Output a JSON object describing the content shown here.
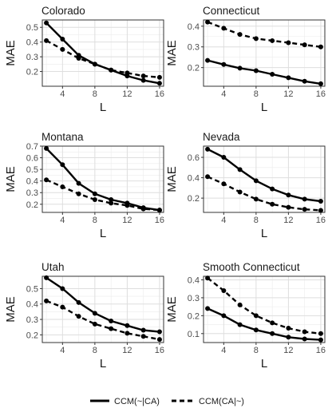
{
  "legend": {
    "items": [
      {
        "label": "CCM(~|CA)",
        "style": "solid"
      },
      {
        "label": "CCM(CA|~)",
        "style": "dashed"
      }
    ]
  },
  "chart_data": [
    {
      "type": "line",
      "title": "Colorado",
      "xlabel": "L",
      "ylabel": "MAE",
      "x": [
        2,
        4,
        6,
        8,
        10,
        12,
        14,
        16
      ],
      "xlim": [
        1.5,
        16.5
      ],
      "xticks": [
        4,
        8,
        12,
        16
      ],
      "ylim": [
        0.1,
        0.55
      ],
      "yticks": [
        0.2,
        0.3,
        0.4,
        0.5
      ],
      "ytick_labels": [
        "0.2",
        "0.3",
        "0.4",
        "0.5"
      ],
      "series": [
        {
          "name": "CCM(~|CA)",
          "style": "solid",
          "values": [
            0.53,
            0.42,
            0.31,
            0.25,
            0.21,
            0.17,
            0.14,
            0.12
          ]
        },
        {
          "name": "CCM(CA|~)",
          "style": "dashed",
          "values": [
            0.41,
            0.35,
            0.29,
            0.25,
            0.21,
            0.19,
            0.17,
            0.16
          ]
        }
      ]
    },
    {
      "type": "line",
      "title": "Connecticut",
      "xlabel": "L",
      "ylabel": "MAE",
      "x": [
        2,
        4,
        6,
        8,
        10,
        12,
        14,
        16
      ],
      "xlim": [
        1.5,
        16.5
      ],
      "xticks": [
        4,
        8,
        12,
        16
      ],
      "ylim": [
        0.11,
        0.43
      ],
      "yticks": [
        0.2,
        0.3,
        0.4
      ],
      "ytick_labels": [
        "0.2",
        "0.3",
        "0.4"
      ],
      "series": [
        {
          "name": "CCM(~|CA)",
          "style": "solid",
          "values": [
            0.235,
            0.215,
            0.197,
            0.185,
            0.168,
            0.151,
            0.134,
            0.122
          ]
        },
        {
          "name": "CCM(CA|~)",
          "style": "dashed",
          "values": [
            0.42,
            0.39,
            0.36,
            0.34,
            0.33,
            0.32,
            0.31,
            0.3
          ]
        }
      ]
    },
    {
      "type": "line",
      "title": "Montana",
      "xlabel": "L",
      "ylabel": "MAE",
      "x": [
        2,
        4,
        6,
        8,
        10,
        12,
        14,
        16
      ],
      "xlim": [
        1.5,
        16.5
      ],
      "xticks": [
        4,
        8,
        12,
        16
      ],
      "ylim": [
        0.13,
        0.7
      ],
      "yticks": [
        0.2,
        0.3,
        0.4,
        0.5,
        0.6,
        0.7
      ],
      "ytick_labels": [
        "0.2",
        "0.3",
        "0.4",
        "0.5",
        "0.6",
        "0.7"
      ],
      "series": [
        {
          "name": "CCM(~|CA)",
          "style": "solid",
          "values": [
            0.68,
            0.54,
            0.38,
            0.29,
            0.24,
            0.21,
            0.17,
            0.15
          ]
        },
        {
          "name": "CCM(CA|~)",
          "style": "dashed",
          "values": [
            0.41,
            0.35,
            0.29,
            0.24,
            0.21,
            0.19,
            0.16,
            0.15
          ]
        }
      ]
    },
    {
      "type": "line",
      "title": "Nevada",
      "xlabel": "L",
      "ylabel": "MAE",
      "x": [
        2,
        4,
        6,
        8,
        10,
        12,
        14,
        16
      ],
      "xlim": [
        1.5,
        16.5
      ],
      "xticks": [
        4,
        8,
        12,
        16
      ],
      "ylim": [
        0.06,
        0.71
      ],
      "yticks": [
        0.2,
        0.4,
        0.6
      ],
      "ytick_labels": [
        "0.2",
        "0.4",
        "0.6"
      ],
      "series": [
        {
          "name": "CCM(~|CA)",
          "style": "solid",
          "values": [
            0.68,
            0.6,
            0.48,
            0.37,
            0.29,
            0.23,
            0.19,
            0.17
          ]
        },
        {
          "name": "CCM(CA|~)",
          "style": "dashed",
          "values": [
            0.41,
            0.34,
            0.26,
            0.19,
            0.14,
            0.11,
            0.09,
            0.08
          ]
        }
      ]
    },
    {
      "type": "line",
      "title": "Utah",
      "xlabel": "L",
      "ylabel": "MAE",
      "x": [
        2,
        4,
        6,
        8,
        10,
        12,
        14,
        16
      ],
      "xlim": [
        1.5,
        16.5
      ],
      "xticks": [
        4,
        8,
        12,
        16
      ],
      "ylim": [
        0.15,
        0.58
      ],
      "yticks": [
        0.2,
        0.3,
        0.4,
        0.5
      ],
      "ytick_labels": [
        "0.2",
        "0.3",
        "0.4",
        "0.5"
      ],
      "series": [
        {
          "name": "CCM(~|CA)",
          "style": "solid",
          "values": [
            0.57,
            0.5,
            0.41,
            0.34,
            0.29,
            0.26,
            0.23,
            0.22
          ]
        },
        {
          "name": "CCM(CA|~)",
          "style": "dashed",
          "values": [
            0.42,
            0.38,
            0.32,
            0.27,
            0.24,
            0.21,
            0.19,
            0.17
          ]
        }
      ]
    },
    {
      "type": "line",
      "title": "Smooth Connecticut",
      "xlabel": "L",
      "ylabel": "MAE",
      "x": [
        2,
        4,
        6,
        8,
        10,
        12,
        14,
        16
      ],
      "xlim": [
        1.5,
        16.5
      ],
      "xticks": [
        4,
        8,
        12,
        16
      ],
      "ylim": [
        0.05,
        0.42
      ],
      "yticks": [
        0.1,
        0.2,
        0.3,
        0.4
      ],
      "ytick_labels": [
        "0.1",
        "0.2",
        "0.3",
        "0.4"
      ],
      "series": [
        {
          "name": "CCM(~|CA)",
          "style": "solid",
          "values": [
            0.24,
            0.2,
            0.15,
            0.12,
            0.1,
            0.08,
            0.07,
            0.065
          ]
        },
        {
          "name": "CCM(CA|~)",
          "style": "dashed",
          "values": [
            0.41,
            0.34,
            0.26,
            0.2,
            0.16,
            0.13,
            0.11,
            0.1
          ]
        }
      ]
    }
  ]
}
